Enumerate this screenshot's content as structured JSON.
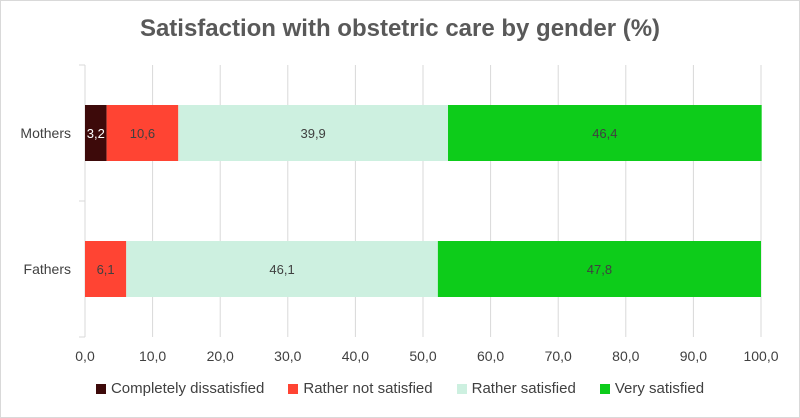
{
  "chart_data": {
    "type": "bar",
    "orientation": "horizontal",
    "stacked": true,
    "title": "Satisfaction with obstetric care by gender (%)",
    "categories": [
      "Mothers",
      "Fathers"
    ],
    "series": [
      {
        "name": "Completely dissatisfied",
        "color": "#3d0a0a",
        "values": [
          3.2,
          0
        ],
        "labels": [
          "3,2",
          ""
        ]
      },
      {
        "name": "Rather not satisfied",
        "color": "#ff4433",
        "values": [
          10.6,
          6.1
        ],
        "labels": [
          "10,6",
          "6,1"
        ]
      },
      {
        "name": "Rather satisfied",
        "color": "#cdf0e0",
        "values": [
          39.9,
          46.1
        ],
        "labels": [
          "39,9",
          "46,1"
        ]
      },
      {
        "name": "Very satisfied",
        "color": "#0dcc1a",
        "values": [
          46.4,
          47.8
        ],
        "labels": [
          "46,4",
          "47,8"
        ]
      }
    ],
    "xlim": [
      0,
      100
    ],
    "xticks": [
      "0,0",
      "10,0",
      "20,0",
      "30,0",
      "40,0",
      "50,0",
      "60,0",
      "70,0",
      "80,0",
      "90,0",
      "100,0"
    ],
    "grid": true,
    "legend_position": "bottom"
  }
}
